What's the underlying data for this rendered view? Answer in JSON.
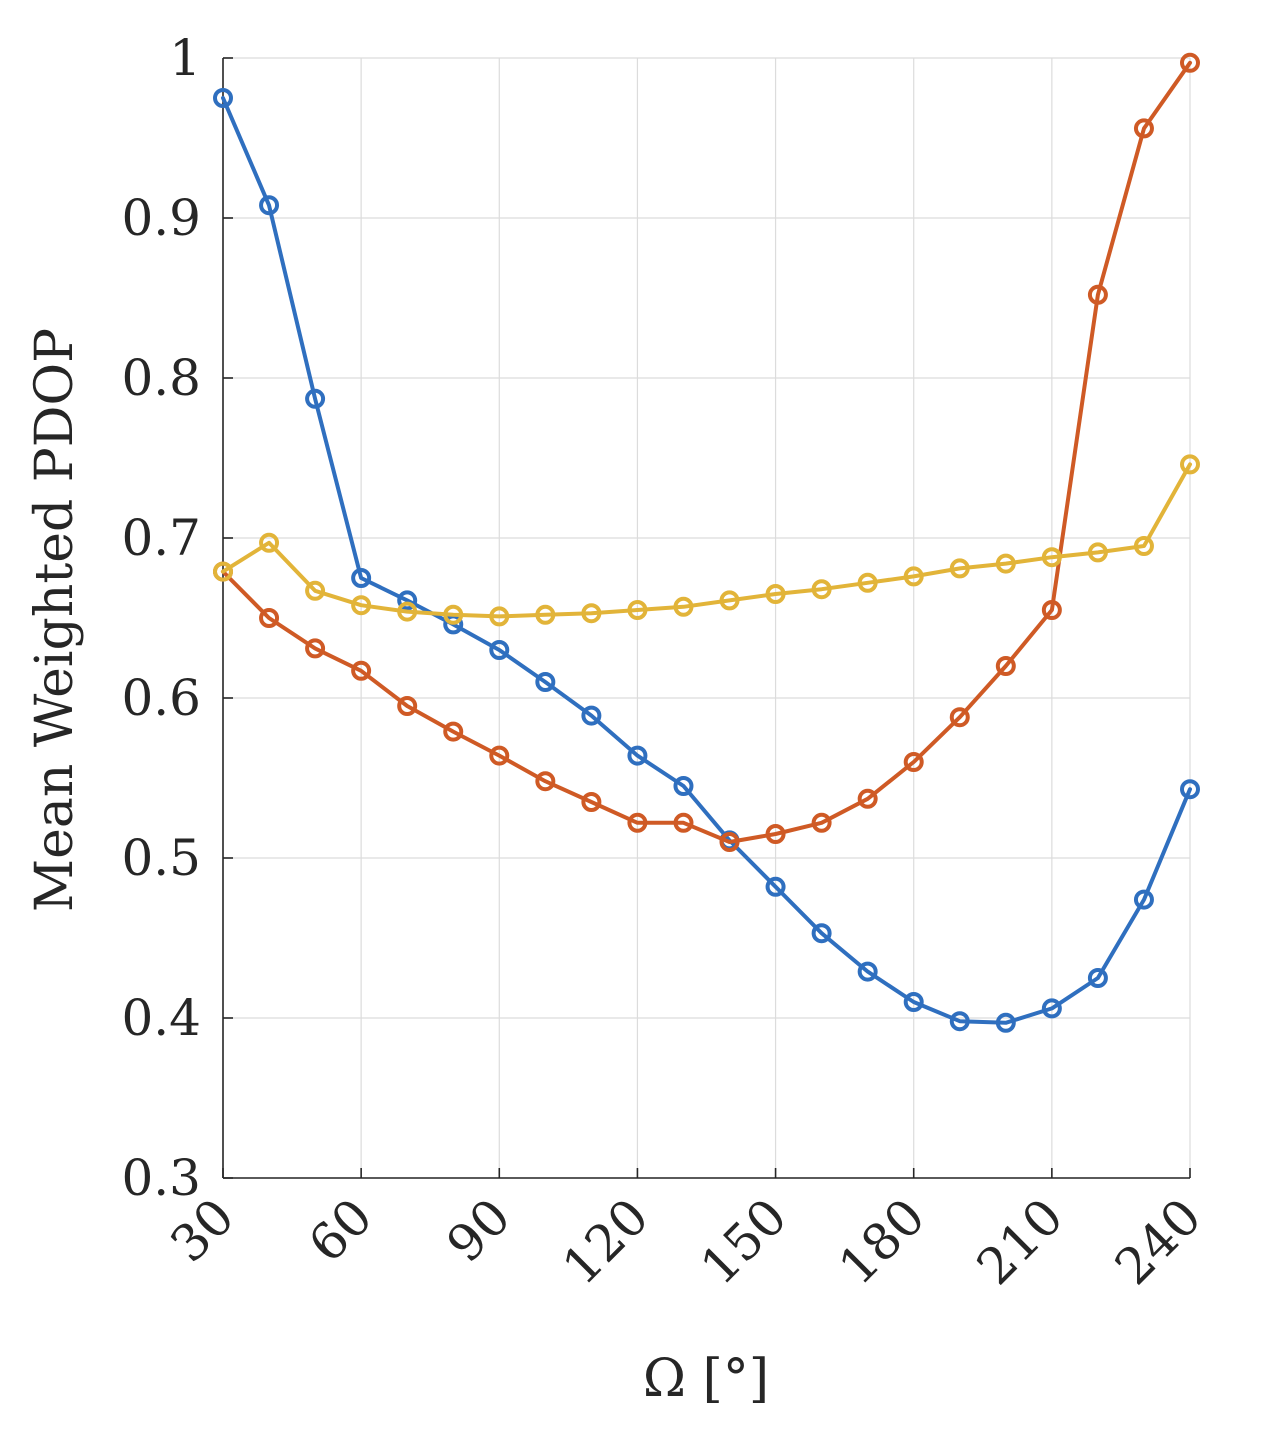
{
  "chart_data": {
    "type": "line",
    "title": "",
    "xlabel": "Ω [°]",
    "ylabel": "Mean Weighted PDOP",
    "xlim": [
      30,
      240
    ],
    "ylim": [
      0.3,
      1.0
    ],
    "xticks": [
      30,
      60,
      90,
      120,
      150,
      180,
      210,
      240
    ],
    "xtick_labels": [
      "30",
      "60",
      "90",
      "120",
      "150",
      "180",
      "210",
      "240"
    ],
    "yticks": [
      0.3,
      0.4,
      0.5,
      0.6,
      0.7,
      0.8,
      0.9,
      1.0
    ],
    "ytick_labels": [
      "0.3",
      "0.4",
      "0.5",
      "0.6",
      "0.7",
      "0.8",
      "0.9",
      "1"
    ],
    "grid": true,
    "x": [
      30,
      40,
      50,
      60,
      70,
      80,
      90,
      100,
      110,
      120,
      130,
      140,
      150,
      160,
      170,
      180,
      190,
      200,
      210,
      220,
      230,
      240
    ],
    "series": [
      {
        "name": "blue",
        "color": "#2f6fbf",
        "marker": "circle",
        "values": [
          0.975,
          0.908,
          0.787,
          0.675,
          0.661,
          0.646,
          0.63,
          0.61,
          0.589,
          0.564,
          0.545,
          0.511,
          0.482,
          0.453,
          0.429,
          0.41,
          0.398,
          0.397,
          0.406,
          0.425,
          0.474,
          0.543
        ]
      },
      {
        "name": "orange",
        "color": "#cf5a25",
        "marker": "circle",
        "values": [
          0.679,
          0.65,
          0.631,
          0.617,
          0.595,
          0.579,
          0.564,
          0.548,
          0.535,
          0.522,
          0.522,
          0.51,
          0.515,
          0.522,
          0.537,
          0.56,
          0.588,
          0.62,
          0.655,
          0.852,
          0.956,
          0.997
        ]
      },
      {
        "name": "yellow",
        "color": "#e2b439",
        "marker": "circle",
        "values": [
          0.679,
          0.697,
          0.667,
          0.658,
          0.654,
          0.652,
          0.651,
          0.652,
          0.653,
          0.655,
          0.657,
          0.661,
          0.665,
          0.668,
          0.672,
          0.676,
          0.681,
          0.684,
          0.688,
          0.691,
          0.695,
          0.746
        ]
      }
    ]
  }
}
